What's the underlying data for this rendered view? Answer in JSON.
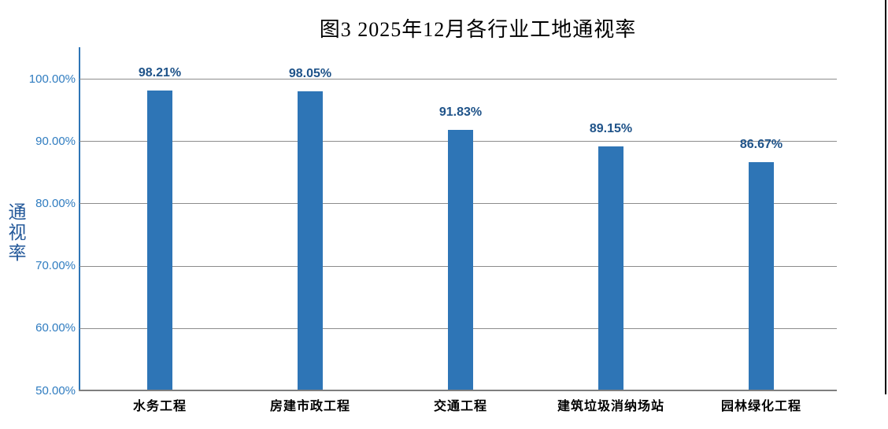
{
  "chart_data": {
    "type": "bar",
    "title": "图3 2025年12月各行业工地通视率",
    "ylabel": "通视率",
    "xlabel": "",
    "categories": [
      "水务工程",
      "房建市政工程",
      "交通工程",
      "建筑垃圾消纳场站",
      "园林绿化工程"
    ],
    "values": [
      98.21,
      98.05,
      91.83,
      89.15,
      86.67
    ],
    "data_labels": [
      "98.21%",
      "98.05%",
      "91.83%",
      "89.15%",
      "86.67%"
    ],
    "ylim": [
      50,
      100
    ],
    "yticks": [
      100,
      90,
      80,
      70,
      60,
      50
    ],
    "ytick_labels": [
      "100.00%",
      "90.00%",
      "80.00%",
      "70.00%",
      "60.00%",
      "50.00%"
    ],
    "grid": true,
    "legend_position": "none",
    "colors": {
      "bar": "#2E75B6",
      "data_label": "#1F5389",
      "tick_label": "#2F7CC0",
      "y_axis_line": "#2E75B6",
      "x_axis_line": "#7F7F7F",
      "gridline": "#8C8C8C",
      "axis_title": "#24599A",
      "title": "#000000",
      "category_label": "#000000"
    }
  }
}
